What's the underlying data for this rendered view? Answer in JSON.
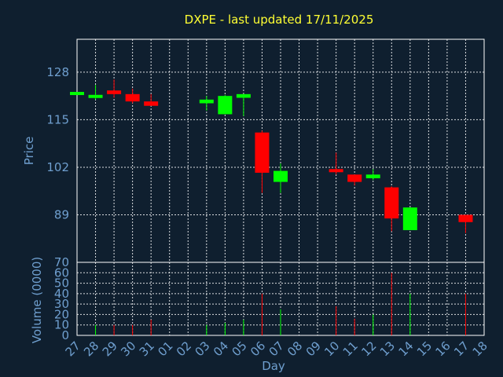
{
  "chart_data": {
    "type": "candlestick",
    "title": "DXPE - last updated 17/11/2025",
    "xlabel": "Day",
    "price_panel": {
      "ylabel": "Price",
      "yticks": [
        89,
        102,
        115,
        128
      ],
      "ylim": [
        76,
        137
      ]
    },
    "volume_panel": {
      "ylabel": "Volume (0000)",
      "yticks": [
        0,
        10,
        20,
        30,
        40,
        50,
        60,
        70
      ],
      "ylim": [
        0,
        70
      ]
    },
    "x_labels": [
      "27",
      "28",
      "29",
      "30",
      "31",
      "01",
      "02",
      "03",
      "04",
      "05",
      "06",
      "07",
      "08",
      "09",
      "10",
      "11",
      "12",
      "13",
      "14",
      "15",
      "16",
      "17",
      "18"
    ],
    "colors": {
      "up": "#00ff00",
      "down": "#ff0000",
      "background": "#0f1f2f",
      "title": "#ffff33",
      "axis": "#6f9fcf"
    },
    "candles": [
      {
        "x": "27",
        "open": 122.6,
        "high": 122.6,
        "low": 122.6,
        "close": 122.6,
        "volume": 0
      },
      {
        "x": "28",
        "open": 121.0,
        "high": 124.5,
        "low": 120.5,
        "close": 121.8,
        "volume": 10
      },
      {
        "x": "29",
        "open": 123.0,
        "high": 126.0,
        "low": 121.0,
        "close": 122.0,
        "volume": 10
      },
      {
        "x": "30",
        "open": 122.0,
        "high": 123.5,
        "low": 119.5,
        "close": 120.0,
        "volume": 10
      },
      {
        "x": "31",
        "open": 120.0,
        "high": 122.0,
        "low": 118.8,
        "close": 118.8,
        "volume": 15
      },
      {
        "x": "03",
        "open": 119.5,
        "high": 121.5,
        "low": 117.5,
        "close": 120.5,
        "volume": 10
      },
      {
        "x": "04",
        "open": 116.5,
        "high": 121.8,
        "low": 116.5,
        "close": 121.5,
        "volume": 12
      },
      {
        "x": "05",
        "open": 121.0,
        "high": 122.0,
        "low": 116.0,
        "close": 122.0,
        "volume": 15
      },
      {
        "x": "06",
        "open": 111.5,
        "high": 112.0,
        "low": 95.0,
        "close": 100.5,
        "volume": 40
      },
      {
        "x": "07",
        "open": 98.0,
        "high": 103.0,
        "low": 95.0,
        "close": 101.0,
        "volume": 25
      },
      {
        "x": "10",
        "open": 101.5,
        "high": 106.0,
        "low": 100.0,
        "close": 100.8,
        "volume": 28
      },
      {
        "x": "11",
        "open": 100.0,
        "high": 100.0,
        "low": 97.0,
        "close": 98.0,
        "volume": 16
      },
      {
        "x": "12",
        "open": 99.0,
        "high": 101.5,
        "low": 98.5,
        "close": 100.0,
        "volume": 20
      },
      {
        "x": "13",
        "open": 96.5,
        "high": 96.8,
        "low": 84.5,
        "close": 88.0,
        "volume": 60
      },
      {
        "x": "14",
        "open": 84.8,
        "high": 91.0,
        "low": 84.8,
        "close": 91.0,
        "volume": 40
      },
      {
        "x": "17",
        "open": 89.0,
        "high": 89.0,
        "low": 84.0,
        "close": 87.0,
        "volume": 40
      }
    ]
  }
}
